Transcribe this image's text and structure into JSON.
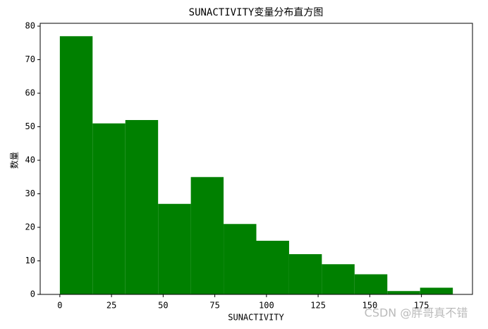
{
  "chart_data": {
    "type": "histogram",
    "title": "SUNACTIVITY变量分布直方图",
    "x_label": "SUNACTIVITY",
    "y_label": "数量",
    "bins": [
      0,
      15.85,
      31.7,
      47.55,
      63.4,
      79.25,
      95.1,
      110.95,
      126.8,
      142.65,
      158.5,
      174.35,
      190.2
    ],
    "values": [
      77,
      51,
      52,
      27,
      35,
      21,
      16,
      12,
      9,
      6,
      1,
      2
    ],
    "color": "#008000",
    "xlim": [
      -9.51,
      199.71
    ],
    "xticks": [
      0,
      25,
      50,
      75,
      100,
      125,
      150,
      175
    ],
    "ylim": [
      0,
      80.85
    ],
    "yticks": [
      0,
      10,
      20,
      30,
      40,
      50,
      60,
      70,
      80
    ],
    "grid": false
  },
  "watermark": "CSDN @胖哥真不错"
}
